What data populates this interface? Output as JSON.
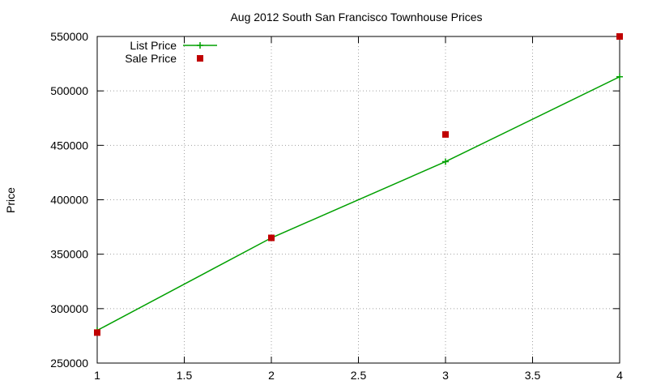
{
  "chart_data": {
    "type": "line",
    "title": "Aug 2012 South San Francisco Townhouse Prices",
    "xlabel": "",
    "ylabel": "Price",
    "xlim": [
      1,
      4
    ],
    "ylim": [
      250000,
      550000
    ],
    "x_ticks": [
      1,
      1.5,
      2,
      2.5,
      3,
      3.5,
      4
    ],
    "x_tick_labels": [
      "1",
      "1.5",
      "2",
      "2.5",
      "3",
      "3.5",
      "4"
    ],
    "y_ticks": [
      250000,
      300000,
      350000,
      400000,
      450000,
      500000,
      550000
    ],
    "y_tick_labels": [
      "250000",
      "300000",
      "350000",
      "400000",
      "450000",
      "500000",
      "550000"
    ],
    "grid": true,
    "legend_position": "top-left",
    "series": [
      {
        "name": "List Price",
        "style": "line-with-plus-markers",
        "color": "#00a000",
        "x": [
          1,
          2,
          3,
          4
        ],
        "y": [
          280000,
          365000,
          435000,
          513000
        ]
      },
      {
        "name": "Sale Price",
        "style": "square-markers",
        "color": "#c00000",
        "x": [
          1,
          2,
          3,
          4
        ],
        "y": [
          278000,
          365000,
          460000,
          550000
        ]
      }
    ]
  }
}
